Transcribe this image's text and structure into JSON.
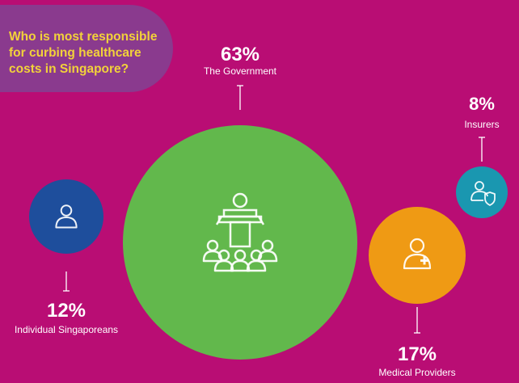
{
  "question": "Who is most responsible\nfor curbing  healthcare\ncosts in Singapore?",
  "colors": {
    "background": "#b90d74",
    "question_box": "#8a3a8e",
    "question_text": "#f2d23a",
    "government": "#62b84c",
    "individual": "#1e4e9c",
    "medical": "#ef9a14",
    "insurers": "#1a97b0",
    "text": "#ffffff"
  },
  "chart_data": {
    "type": "bubble",
    "title": "Who is most responsible for curbing healthcare costs in Singapore?",
    "unit": "%",
    "series": [
      {
        "label": "The Government",
        "value": 63,
        "display": "63%",
        "color_key": "government",
        "icon": "podium-audience-icon"
      },
      {
        "label": "Individual Singaporeans",
        "value": 12,
        "display": "12%",
        "color_key": "individual",
        "icon": "person-icon"
      },
      {
        "label": "Medical Providers",
        "value": 17,
        "display": "17%",
        "color_key": "medical",
        "icon": "medical-person-icon"
      },
      {
        "label": "Insurers",
        "value": 8,
        "display": "8%",
        "color_key": "insurers",
        "icon": "person-shield-icon"
      }
    ]
  }
}
